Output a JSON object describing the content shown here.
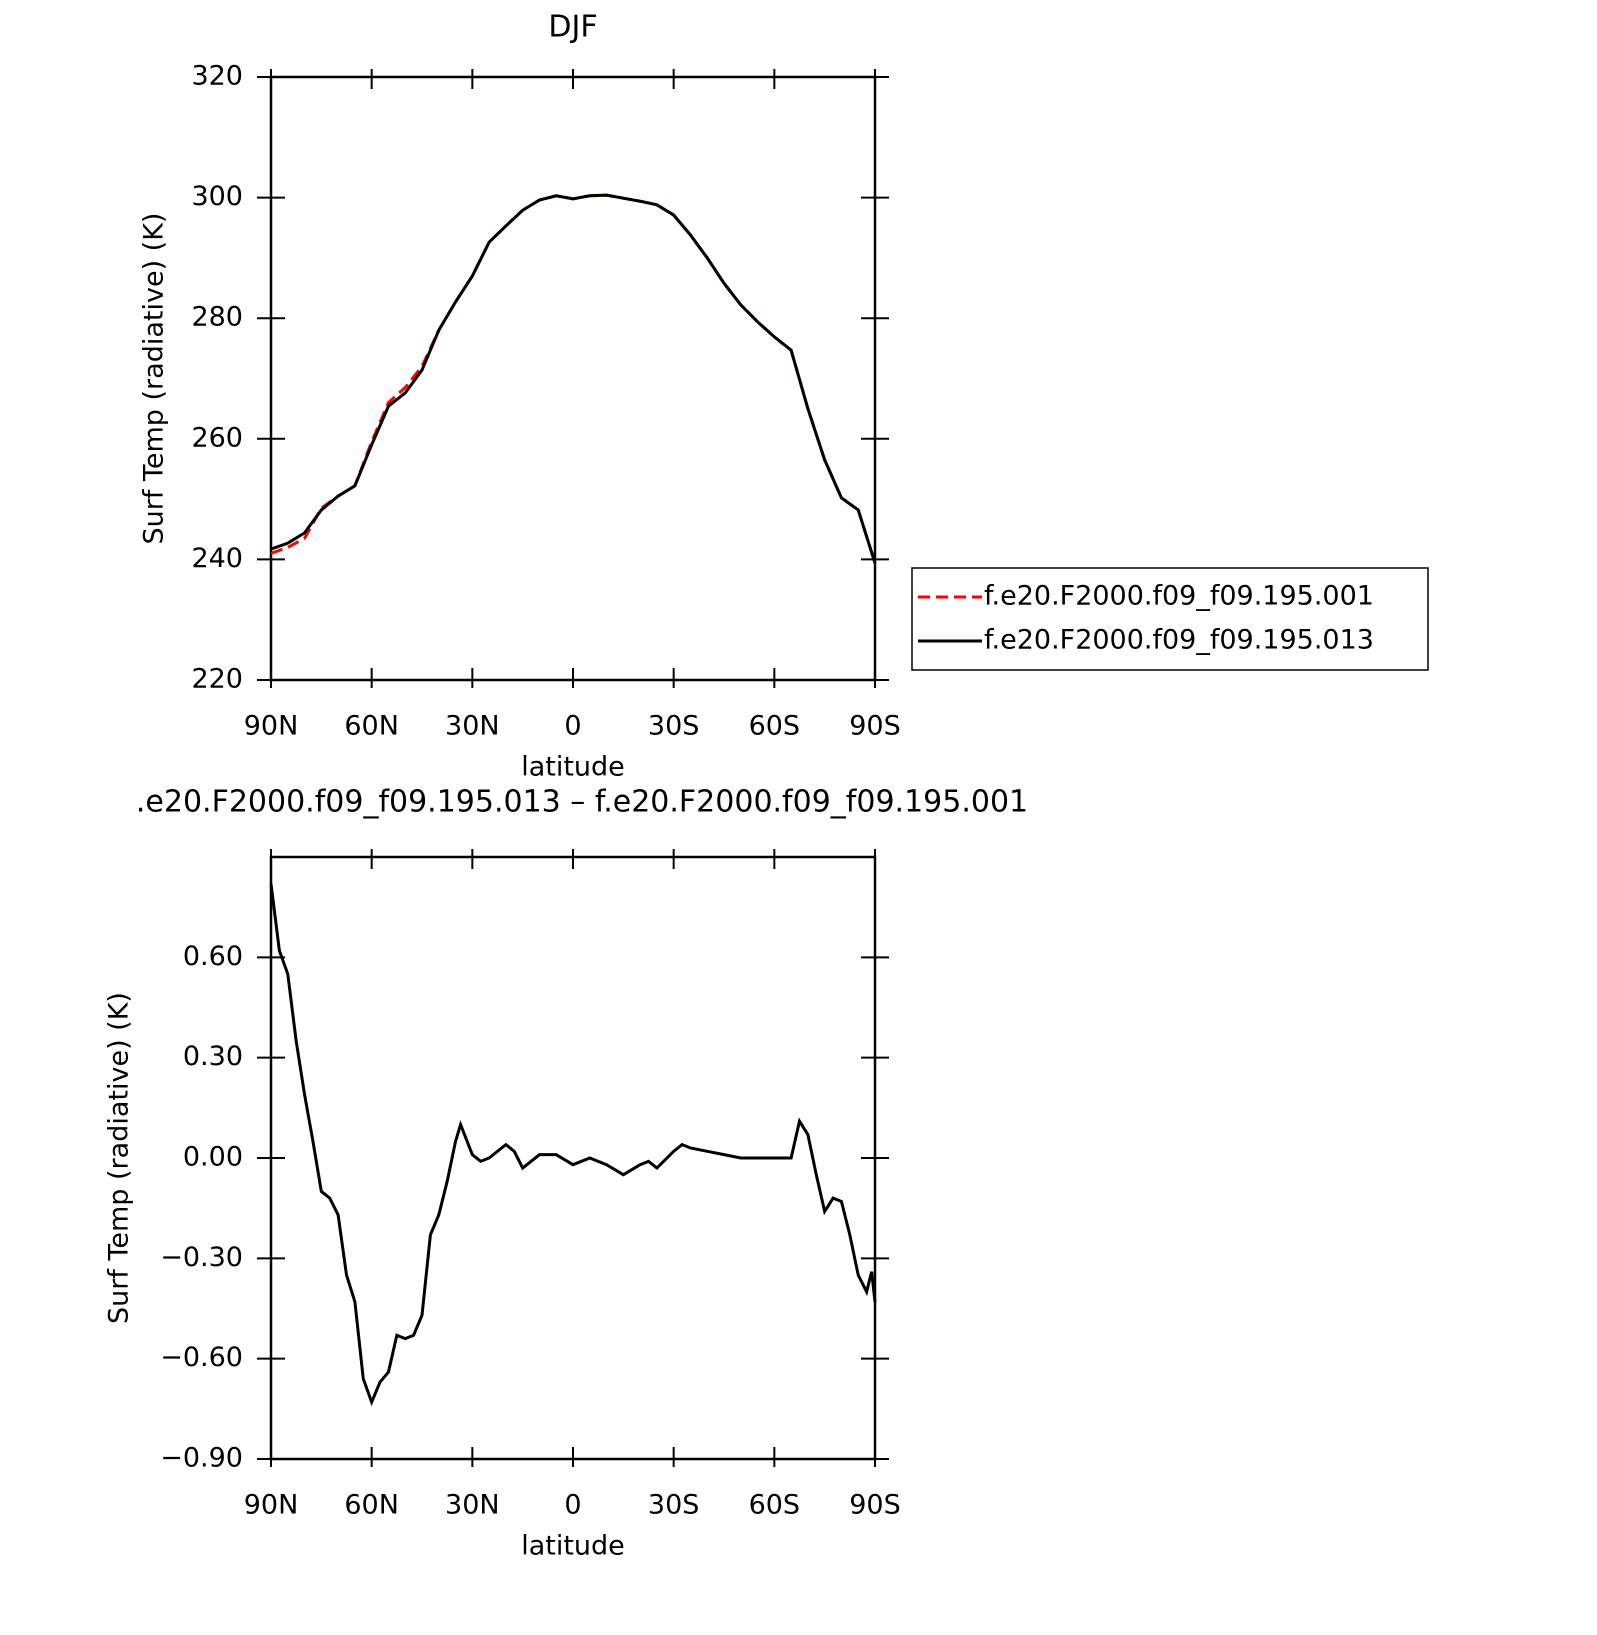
{
  "chart_data": [
    {
      "type": "line",
      "title": "DJF",
      "xlabel": "latitude",
      "ylabel": "Surf Temp (radiative) (K)",
      "xlim": [
        90,
        -90
      ],
      "ylim": [
        220,
        320
      ],
      "xticks": [
        {
          "value": 90,
          "label": "90N"
        },
        {
          "value": 60,
          "label": "60N"
        },
        {
          "value": 30,
          "label": "30N"
        },
        0,
        {
          "value": -30,
          "label": "30S"
        },
        {
          "value": -60,
          "label": "60S"
        },
        {
          "value": -90,
          "label": "90S"
        }
      ],
      "yticks": [
        220,
        240,
        260,
        280,
        300,
        320
      ],
      "legend": "outside-right",
      "x": [
        90,
        85,
        80,
        75,
        70,
        65,
        60,
        55,
        50,
        45,
        40,
        35,
        30,
        25,
        20,
        15,
        10,
        5,
        0,
        -5,
        -10,
        -15,
        -20,
        -25,
        -30,
        -35,
        -40,
        -45,
        -50,
        -55,
        -60,
        -65,
        -70,
        -75,
        -80,
        -85,
        -90
      ],
      "series": [
        {
          "name": "f.e20.F2000.f09_f09.195.001",
          "color": "#ff0000",
          "dashed": true,
          "values": [
            241,
            242,
            243.5,
            248.5,
            250.5,
            252.2,
            259.5,
            266,
            268.5,
            272,
            278,
            282.7,
            287,
            292.6,
            295.3,
            297.9,
            299.6,
            300.3,
            299.8,
            300.3,
            300.4,
            299.9,
            299.4,
            298.8,
            297.1,
            293.8,
            290,
            285.8,
            282.2,
            279.4,
            276.9,
            274.7,
            265,
            256.5,
            250.2,
            248.2,
            239.4
          ]
        },
        {
          "name": "f.e20.F2000.f09_f09.195.013",
          "color": "#000000",
          "dashed": false,
          "values": [
            241.7,
            242.7,
            244.4,
            248.2,
            250.5,
            252.2,
            259,
            265.4,
            267.6,
            271.4,
            278,
            282.7,
            287,
            292.6,
            295.3,
            297.9,
            299.6,
            300.3,
            299.8,
            300.3,
            300.4,
            299.9,
            299.4,
            298.8,
            297.1,
            293.8,
            290,
            285.8,
            282.2,
            279.4,
            276.9,
            274.7,
            265,
            256.5,
            250.2,
            248.2,
            239.4
          ]
        }
      ]
    },
    {
      "type": "line",
      "title": ".e20.F2000.f09_f09.195.013 – f.e20.F2000.f09_f09.195.001",
      "xlabel": "latitude",
      "ylabel": "Surf Temp (radiative) (K)",
      "xlim": [
        90,
        -90
      ],
      "ylim": [
        -0.9,
        0.9
      ],
      "xticks": [
        {
          "value": 90,
          "label": "90N"
        },
        {
          "value": 60,
          "label": "60N"
        },
        {
          "value": 30,
          "label": "30N"
        },
        0,
        {
          "value": -30,
          "label": "30S"
        },
        {
          "value": -60,
          "label": "60S"
        },
        {
          "value": -90,
          "label": "90S"
        }
      ],
      "yticks": [
        {
          "value": -0.9,
          "label": "−0.90"
        },
        {
          "value": -0.6,
          "label": "−0.60"
        },
        {
          "value": -0.3,
          "label": "−0.30"
        },
        {
          "value": 0,
          "label": "0.00"
        },
        {
          "value": 0.3,
          "label": "0.30"
        },
        {
          "value": 0.6,
          "label": "0.60"
        }
      ],
      "color": "#000000",
      "x": [
        90,
        87.5,
        85,
        82.5,
        80,
        77.5,
        75,
        72.5,
        70,
        67.5,
        65,
        62.5,
        60,
        57.5,
        55,
        52.5,
        50,
        47.5,
        45,
        42.5,
        40,
        37.5,
        35,
        33.5,
        30,
        27.5,
        25,
        20,
        17.5,
        15,
        10,
        5,
        0,
        -5,
        -10,
        -15,
        -20,
        -22.5,
        -25,
        -30,
        -32.5,
        -35,
        -40,
        -45,
        -50,
        -55,
        -60,
        -65,
        -67.5,
        -70,
        -72.5,
        -75,
        -77.5,
        -80,
        -82.5,
        -85,
        -87.5,
        -89,
        -90
      ],
      "values": [
        0.82,
        0.62,
        0.55,
        0.35,
        0.19,
        0.05,
        -0.1,
        -0.12,
        -0.17,
        -0.35,
        -0.43,
        -0.66,
        -0.73,
        -0.67,
        -0.64,
        -0.53,
        -0.54,
        -0.53,
        -0.47,
        -0.23,
        -0.17,
        -0.07,
        0.05,
        0.1,
        0.01,
        -0.01,
        0,
        0.04,
        0.02,
        -0.03,
        0.01,
        0.01,
        -0.02,
        0,
        -0.02,
        -0.05,
        -0.02,
        -0.01,
        -0.03,
        0.02,
        0.04,
        0.03,
        0.02,
        0.01,
        0,
        0,
        0,
        0,
        0.11,
        0.07,
        -0.05,
        -0.16,
        -0.12,
        -0.13,
        -0.23,
        -0.35,
        -0.4,
        -0.34,
        -0.43
      ]
    }
  ]
}
